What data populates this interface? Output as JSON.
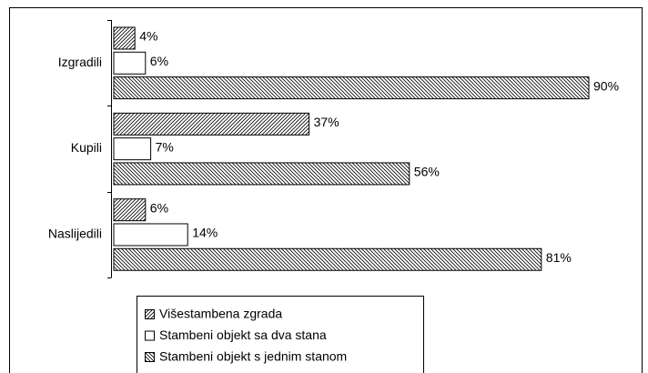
{
  "chart_data": {
    "type": "bar",
    "orientation": "horizontal",
    "categories": [
      "Izgradili",
      "Kupili",
      "Naslijedili"
    ],
    "series": [
      {
        "name": "Višestambena zgrada",
        "color": "#000000",
        "hatch": "/",
        "values": [
          4,
          37,
          6
        ],
        "value_labels": [
          "4%",
          "37%",
          "6%"
        ]
      },
      {
        "name": "Stambeni objekt sa dva stana",
        "color": "#000000",
        "hatch": "none",
        "values": [
          6,
          7,
          14
        ],
        "value_labels": [
          "6%",
          "7%",
          "14%"
        ]
      },
      {
        "name": "Stambeni objekt s jednim stanom",
        "color": "#000000",
        "hatch": "\\",
        "values": [
          90,
          56,
          81
        ],
        "value_labels": [
          "90%",
          "56%",
          "81%"
        ]
      }
    ],
    "xlim": [
      0,
      100
    ],
    "legend": "bottom"
  }
}
